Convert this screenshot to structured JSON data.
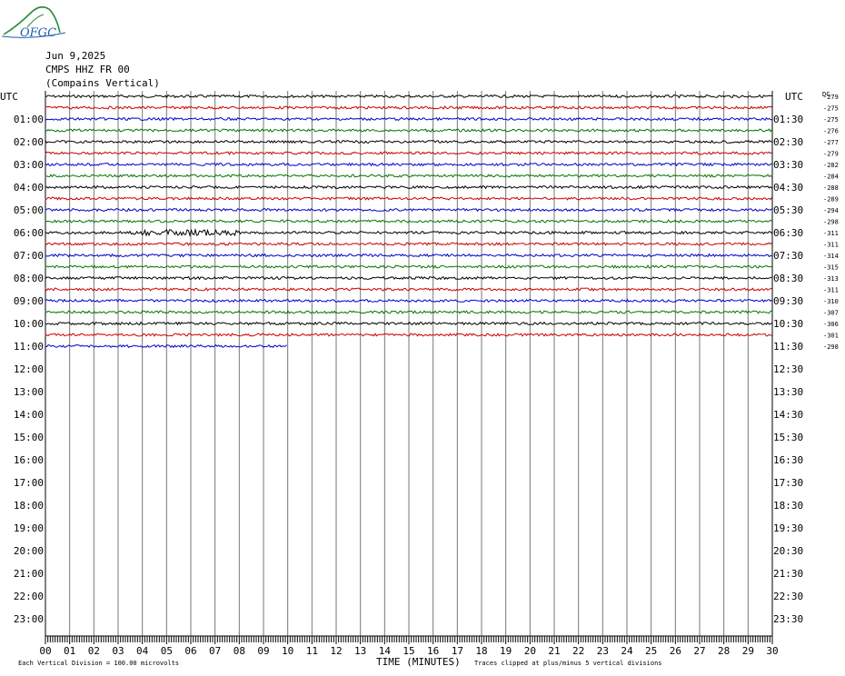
{
  "header": {
    "logo_text": "OFGC",
    "date": "Jun 9,2025",
    "station": "CMPS HHZ FR 00",
    "location": "(Compains Vertical)"
  },
  "chart_data": {
    "type": "line",
    "title": "Jun 9,2025",
    "subtitle": "CMPS HHZ FR 00 (Compains Vertical)",
    "xlabel": "TIME (MINUTES)",
    "x_ticks": [
      "00",
      "01",
      "02",
      "03",
      "04",
      "05",
      "06",
      "07",
      "08",
      "09",
      "10",
      "11",
      "12",
      "13",
      "14",
      "15",
      "16",
      "17",
      "18",
      "19",
      "20",
      "21",
      "22",
      "23",
      "24",
      "25",
      "26",
      "27",
      "28",
      "29",
      "30"
    ],
    "xlim": [
      0,
      30
    ],
    "grid": true,
    "left_header": "UTC",
    "right_header": "UTC",
    "dc_header": "DC",
    "left_labels": [
      "",
      "01:00",
      "02:00",
      "03:00",
      "04:00",
      "05:00",
      "06:00",
      "07:00",
      "08:00",
      "09:00",
      "10:00",
      "11:00",
      "12:00",
      "13:00",
      "14:00",
      "15:00",
      "16:00",
      "17:00",
      "18:00",
      "19:00",
      "20:00",
      "21:00",
      "22:00",
      "23:00"
    ],
    "right_labels": [
      "",
      "01:30",
      "02:30",
      "03:30",
      "04:30",
      "05:30",
      "06:30",
      "07:30",
      "08:30",
      "09:30",
      "10:30",
      "11:30",
      "12:30",
      "13:30",
      "14:30",
      "15:30",
      "16:30",
      "17:30",
      "18:30",
      "19:30",
      "20:30",
      "21:30",
      "22:30",
      "23:30"
    ],
    "trace_colors": [
      "#000000",
      "#cc0000",
      "#0000cc",
      "#007700"
    ],
    "dc_offsets": [
      "-279",
      "-275",
      "-275",
      "-276",
      "-277",
      "-279",
      "-282",
      "-284",
      "-288",
      "-289",
      "-294",
      "-298",
      "-311",
      "-311",
      "-314",
      "-315",
      "-313",
      "-311",
      "-310",
      "-307",
      "-306",
      "-301",
      "-298"
    ],
    "trace_end_minutes": [
      30,
      30,
      30,
      30,
      30,
      30,
      30,
      30,
      30,
      30,
      30,
      30,
      30,
      30,
      30,
      30,
      30,
      30,
      30,
      30,
      30,
      30,
      10
    ],
    "event_burst": {
      "trace_index": 12,
      "start_minute": 3.5,
      "end_minute": 8,
      "amplitude": "larger"
    },
    "footer_left": "Each Vertical Division =  100.00 microvolts",
    "footer_center": "TIME (MINUTES)",
    "footer_right": "Traces clipped at plus/minus 5 vertical divisions"
  }
}
